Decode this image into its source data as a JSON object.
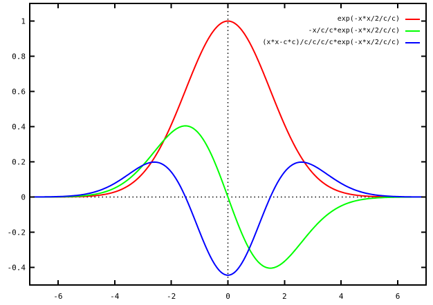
{
  "window": {
    "background_color": "#ffffff",
    "axis_color": "#000000",
    "tick_label_color": "#000000"
  },
  "chart_data": {
    "type": "line",
    "title": "",
    "xlabel": "",
    "ylabel": "",
    "x_range": [
      -7,
      7
    ],
    "y_range": [
      -0.5,
      1.1
    ],
    "x_ticks": [
      -6,
      -4,
      -2,
      0,
      2,
      4,
      6
    ],
    "x_tick_labels": [
      "-6",
      "-4",
      "-2",
      "0",
      "2",
      "4",
      "6"
    ],
    "y_ticks": [
      -0.4,
      -0.2,
      0,
      0.2,
      0.4,
      0.6,
      0.8,
      1
    ],
    "y_tick_labels": [
      "-0.4",
      "-0.2",
      "0",
      "0.2",
      "0.4",
      "0.6",
      "0.8",
      "1"
    ],
    "grid": false,
    "zero_axes_style": "dotted",
    "legend_position": "top-right-inside",
    "parameter_c": 1.5,
    "series": [
      {
        "label": "exp(-x*x/2/c/c)",
        "color": "#ff0000",
        "expr": "Math.exp(-(x*x)/2/(c*c))",
        "key_points": [
          {
            "x": 0,
            "y": 1.0,
            "note": "maximum"
          },
          {
            "x": -7,
            "y": 0.0
          },
          {
            "x": 7,
            "y": 0.0
          }
        ]
      },
      {
        "label": "-x/c/c*exp(-x*x/2/c/c)",
        "color": "#00ff00",
        "expr": "-x/(c*c)*Math.exp(-(x*x)/2/(c*c))",
        "key_points": [
          {
            "x": -1.5,
            "y": 0.404,
            "note": "maximum"
          },
          {
            "x": 0,
            "y": 0.0
          },
          {
            "x": 1.5,
            "y": -0.404,
            "note": "minimum"
          }
        ]
      },
      {
        "label": "(x*x-c*c)/c/c/c/c*exp(-x*x/2/c/c)",
        "color": "#0000ff",
        "expr": "(x*x-c*c)/(c*c*c*c)*Math.exp(-(x*x)/2/(c*c))",
        "key_points": [
          {
            "x": -2.6,
            "y": 0.198,
            "note": "left maximum"
          },
          {
            "x": 0,
            "y": -0.444,
            "note": "minimum"
          },
          {
            "x": 2.6,
            "y": 0.198,
            "note": "right maximum"
          }
        ]
      }
    ]
  }
}
